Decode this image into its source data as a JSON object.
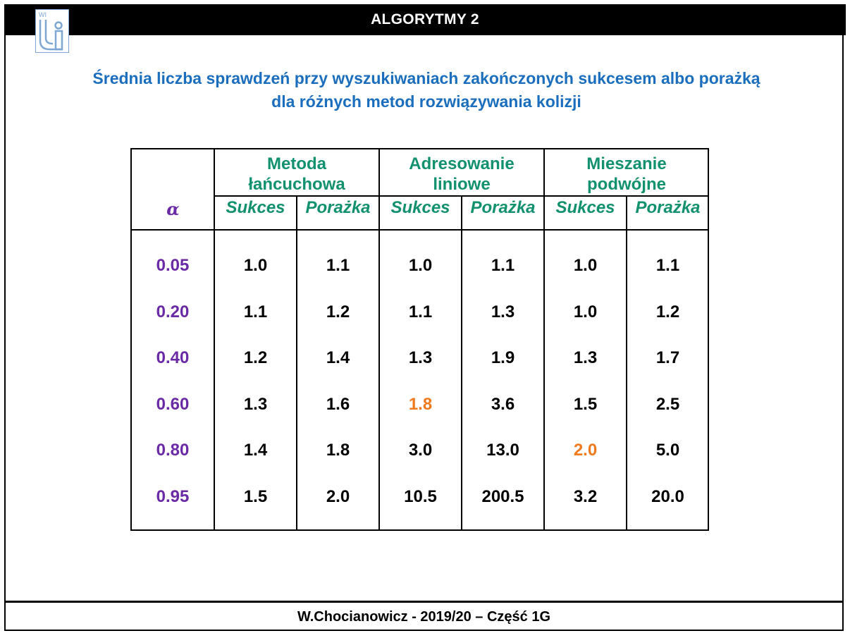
{
  "header": {
    "title": "ALGORYTMY 2"
  },
  "logo": {
    "text": "WI",
    "color": "#7fa7d3"
  },
  "subtitle": {
    "line1": "Średnia liczba sprawdzeń przy wyszukiwaniach zakończonych sukcesem albo porażką",
    "line2": "dla różnych metod rozwiązywania kolizji"
  },
  "table": {
    "alpha_label": "α",
    "groups": [
      {
        "line1": "Metoda",
        "line2": "łańcuchowa"
      },
      {
        "line1": "Adresowanie",
        "line2": "liniowe"
      },
      {
        "line1": "Mieszanie",
        "line2": "podwójne"
      }
    ],
    "subheaders": [
      "Sukces",
      "Porażka",
      "Sukces",
      "Porażka",
      "Sukces",
      "Porażka"
    ],
    "rows": [
      {
        "alpha": "0.05",
        "values": [
          "1.0",
          "1.1",
          "1.0",
          "1.1",
          "1.0",
          "1.1"
        ]
      },
      {
        "alpha": "0.20",
        "values": [
          "1.1",
          "1.2",
          "1.1",
          "1.3",
          "1.0",
          "1.2"
        ]
      },
      {
        "alpha": "0.40",
        "values": [
          "1.2",
          "1.4",
          "1.3",
          "1.9",
          "1.3",
          "1.7"
        ]
      },
      {
        "alpha": "0.60",
        "values": [
          "1.3",
          "1.6",
          "1.8",
          "3.6",
          "1.5",
          "2.5"
        ]
      },
      {
        "alpha": "0.80",
        "values": [
          "1.4",
          "1.8",
          "3.0",
          "13.0",
          "2.0",
          "5.0"
        ]
      },
      {
        "alpha": "0.95",
        "values": [
          "1.5",
          "2.0",
          "10.5",
          "200.5",
          "3.2",
          "20.0"
        ]
      }
    ],
    "highlighted": [
      {
        "row": 3,
        "col": 2
      },
      {
        "row": 4,
        "col": 4
      }
    ],
    "colors": {
      "header": "#12916e",
      "alpha": "#6b2aa5",
      "highlight": "#f07a1e",
      "value": "#000000"
    }
  },
  "footer": {
    "text": "W.Chocianowicz - 2019/20 – Część 1G"
  }
}
